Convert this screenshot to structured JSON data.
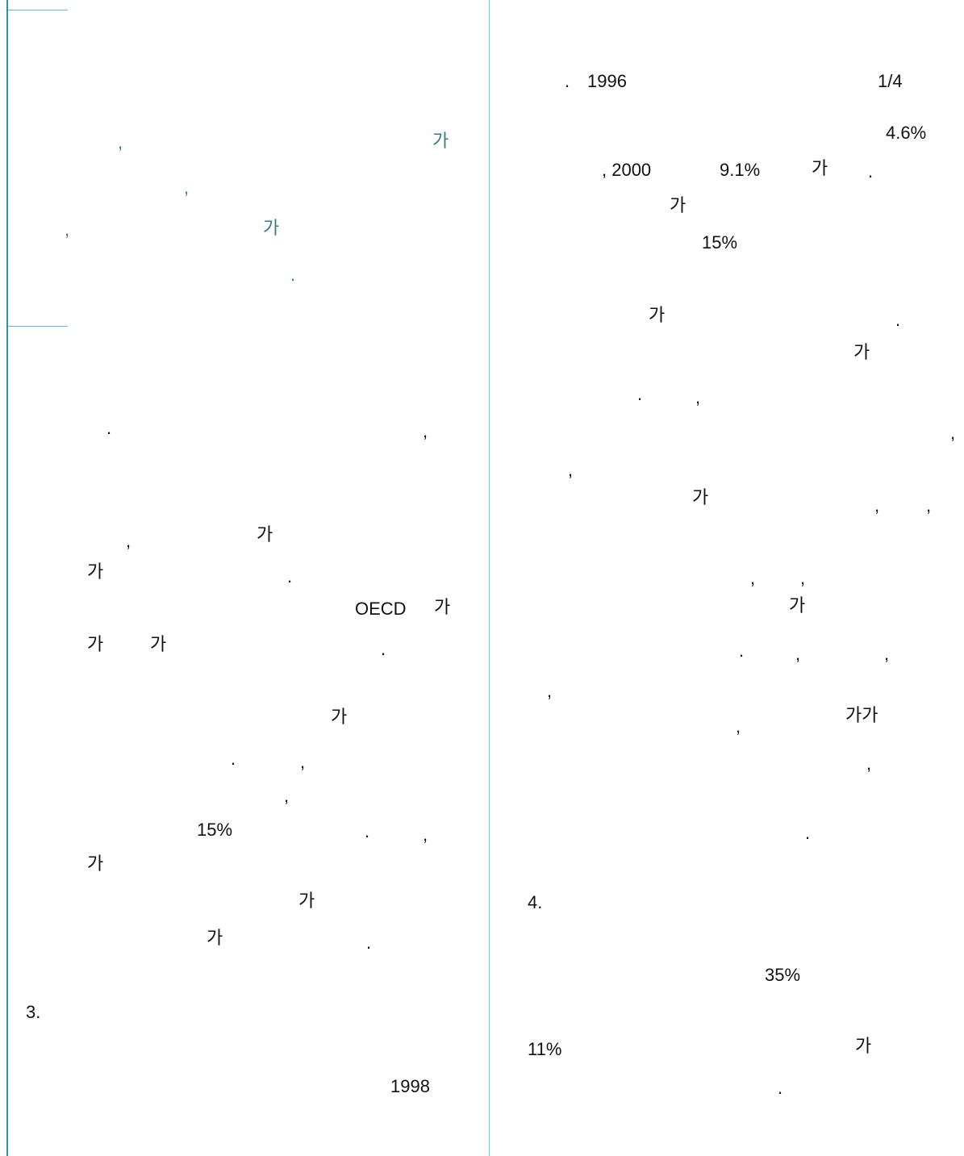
{
  "left_column": {
    "box_fragments": [
      ",",
      "가",
      ",",
      ",",
      "가",
      "."
    ],
    "body_fragments": [
      ".",
      ",",
      ",",
      "가",
      "가",
      ".",
      "OECD",
      "가",
      "가",
      "가",
      ".",
      "가",
      ".",
      ",",
      ",",
      "15%",
      ".",
      ",",
      "가",
      "가",
      "가",
      "."
    ],
    "section_heading": "3.",
    "year_bottom": "1998"
  },
  "right_column": {
    "fragments": [
      ".",
      "1996",
      "1/4",
      "4.6%",
      ", 2000",
      "9.1%",
      "가",
      ".",
      "가",
      "15%",
      "가",
      ".",
      "가",
      ".",
      ",",
      ",",
      ",",
      "가",
      ",",
      ",",
      ",",
      ",",
      "가",
      ".",
      ",",
      ",",
      ",",
      ",",
      "가가",
      ",",
      "."
    ],
    "section_heading": "4.",
    "value_35": "35%",
    "value_11": "11%",
    "end_fragments": [
      "가",
      "."
    ]
  }
}
